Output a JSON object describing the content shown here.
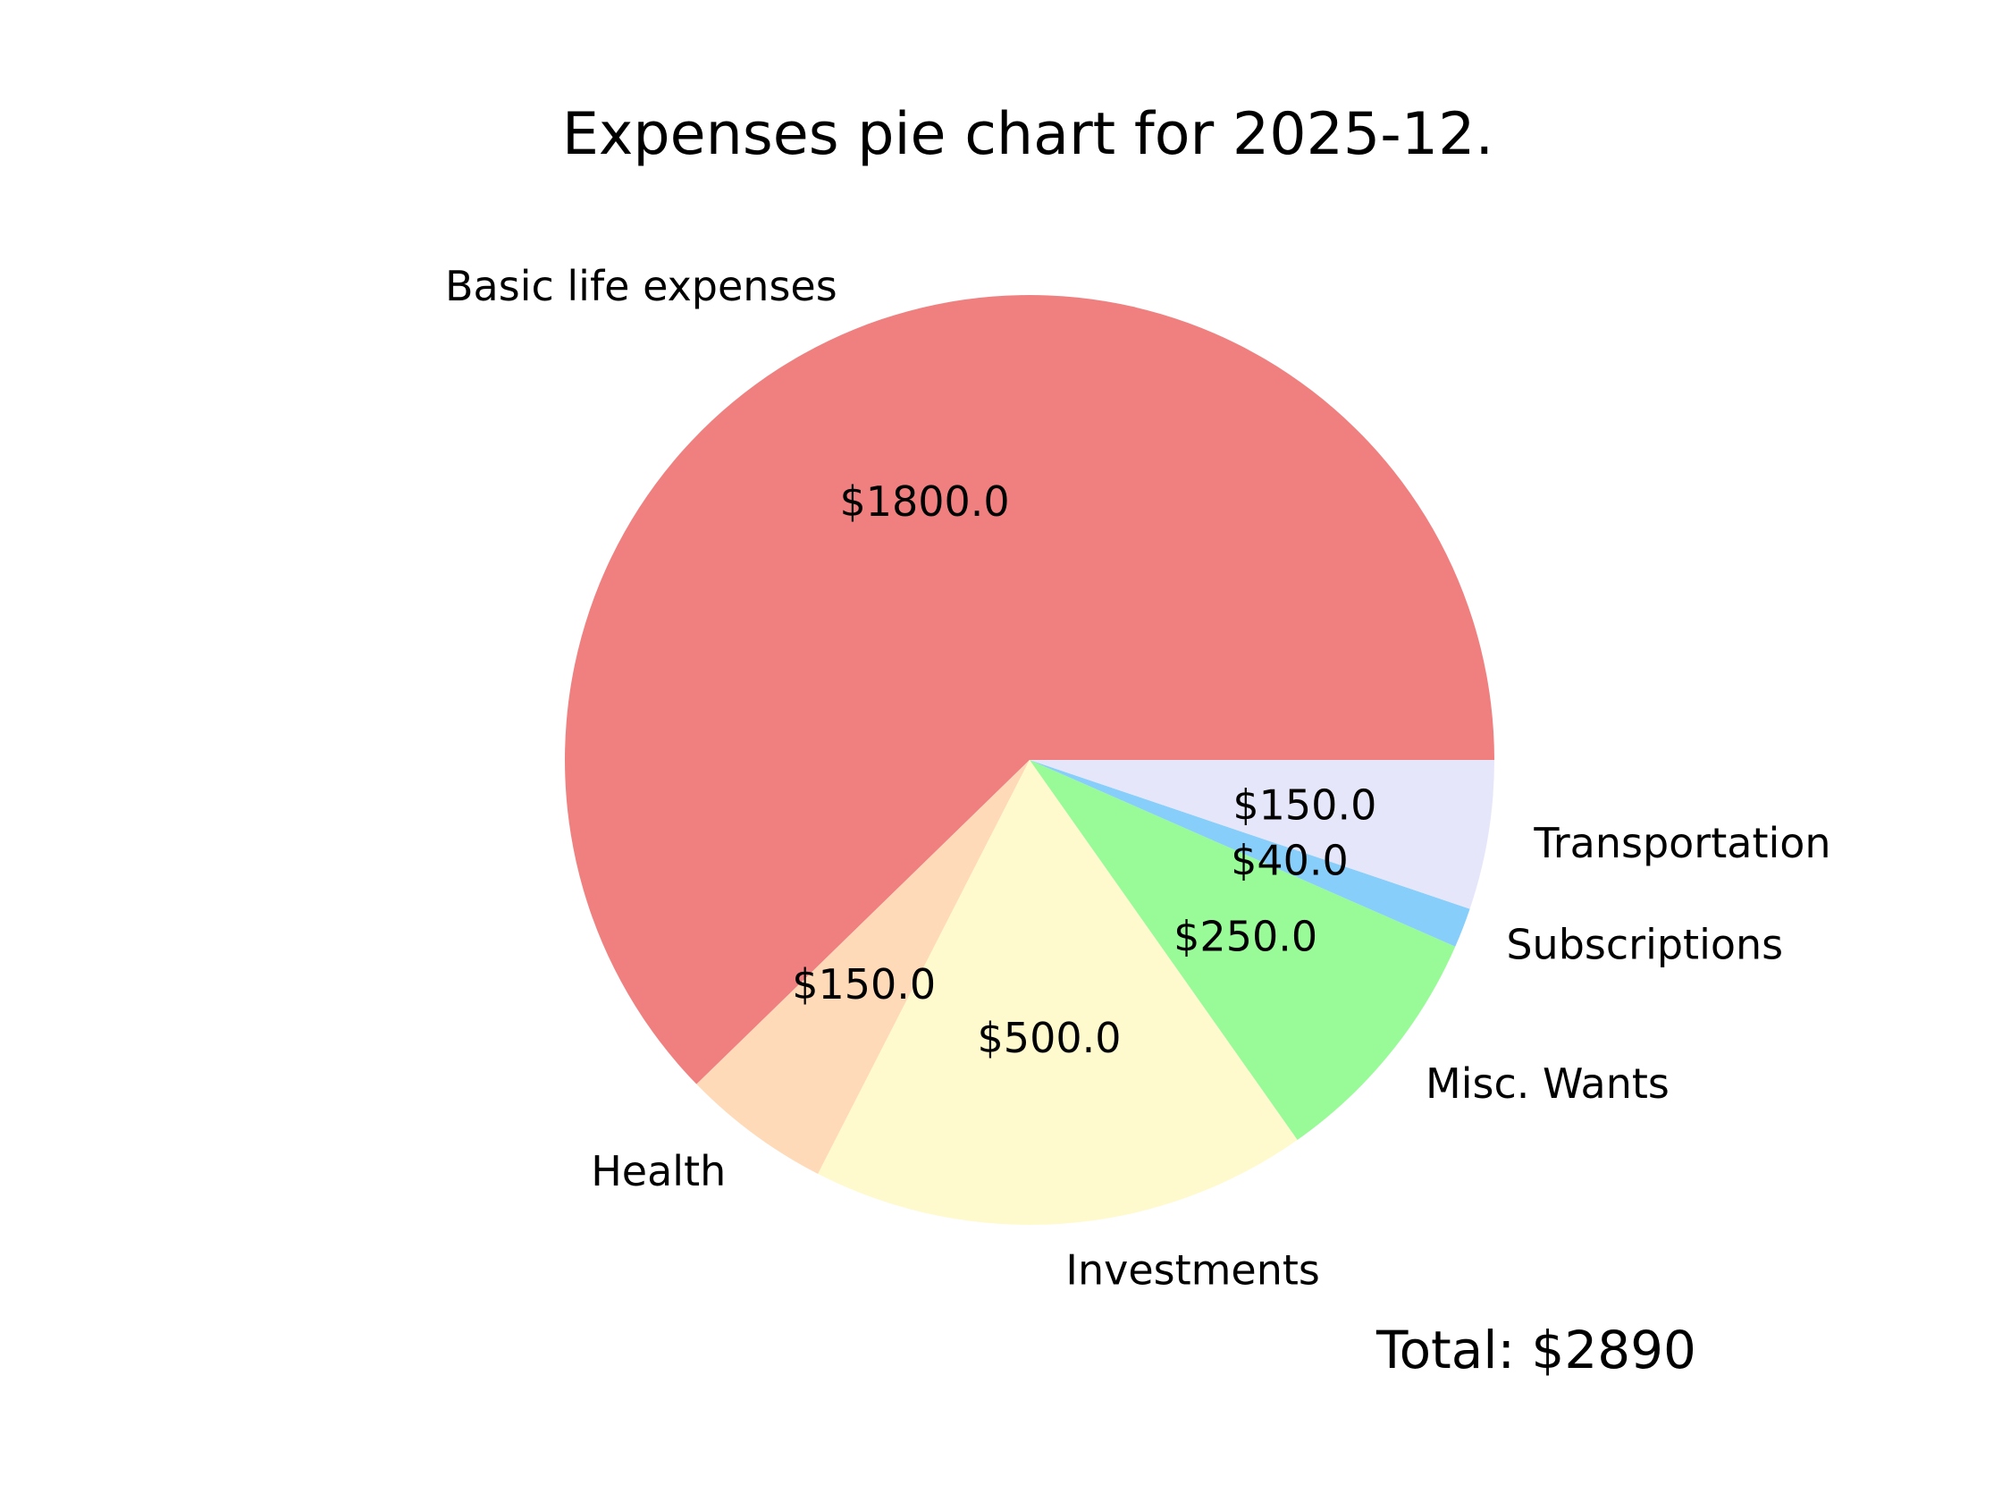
{
  "chart_data": {
    "type": "pie",
    "title": "Expenses pie chart for 2025-12.",
    "total_text": "Total: $2890",
    "start_angle": "3 o'clock, counter-clockwise",
    "slices": [
      {
        "label": "Basic life expenses",
        "value": 1800.0,
        "value_label": "$1800.0",
        "color": "#F08080"
      },
      {
        "label": "Health",
        "value": 150.0,
        "value_label": "$150.0",
        "color": "#FFDAB9"
      },
      {
        "label": "Investments",
        "value": 500.0,
        "value_label": "$500.0",
        "color": "#FFFACD"
      },
      {
        "label": "Misc. Wants",
        "value": 250.0,
        "value_label": "$250.0",
        "color": "#98FB98"
      },
      {
        "label": "Subscriptions",
        "value": 40.0,
        "value_label": "$40.0",
        "color": "#87CEFA"
      },
      {
        "label": "Transportation",
        "value": 150.0,
        "value_label": "$150.0",
        "color": "#E6E6FA"
      }
    ]
  }
}
